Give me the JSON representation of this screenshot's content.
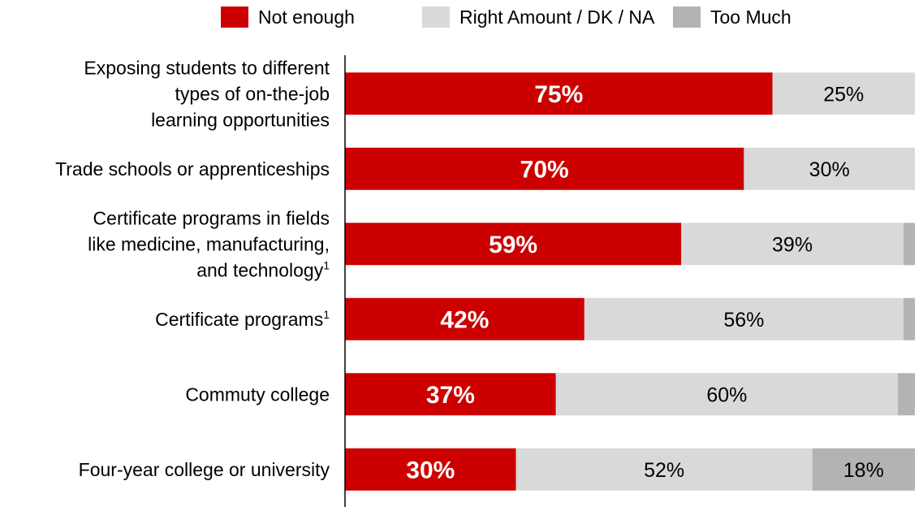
{
  "chart_data": {
    "type": "bar",
    "orientation": "horizontal",
    "stacked": true,
    "title": "",
    "xlabel": "",
    "ylabel": "",
    "xlim": [
      0,
      100
    ],
    "grid": false,
    "legend_position": "top",
    "categories": [
      {
        "lines": [
          "Exposing students to different",
          "types of on-the-job",
          "learning opportunities"
        ],
        "sup": ""
      },
      {
        "lines": [
          "Trade schools or apprenticeships"
        ],
        "sup": ""
      },
      {
        "lines": [
          "Certificate programs in fields",
          "like medicine, manufacturing,",
          "and technology"
        ],
        "sup": "1"
      },
      {
        "lines": [
          "Certificate programs"
        ],
        "sup": "1"
      },
      {
        "lines": [
          "Commuty college"
        ],
        "sup": ""
      },
      {
        "lines": [
          "Four-year college or university"
        ],
        "sup": ""
      }
    ],
    "series": [
      {
        "name": "Not enough",
        "color": "#cc0000",
        "label_color": "#ffffff",
        "label_bold": true,
        "values": [
          75,
          70,
          59,
          42,
          37,
          30
        ],
        "labels": [
          "75%",
          "70%",
          "59%",
          "42%",
          "37%",
          "30%"
        ]
      },
      {
        "name": "Right Amount / DK / NA",
        "color": "#d9d9d9",
        "label_color": "#000000",
        "label_bold": false,
        "values": [
          25,
          30,
          39,
          56,
          60,
          52
        ],
        "labels": [
          "25%",
          "30%",
          "39%",
          "56%",
          "60%",
          "52%"
        ]
      },
      {
        "name": "Too Much",
        "color": "#b3b3b3",
        "label_color": "#000000",
        "label_bold": false,
        "values": [
          0,
          0,
          2,
          2,
          3,
          18
        ],
        "labels": [
          "",
          "",
          "",
          "",
          "",
          "18%"
        ]
      }
    ]
  }
}
